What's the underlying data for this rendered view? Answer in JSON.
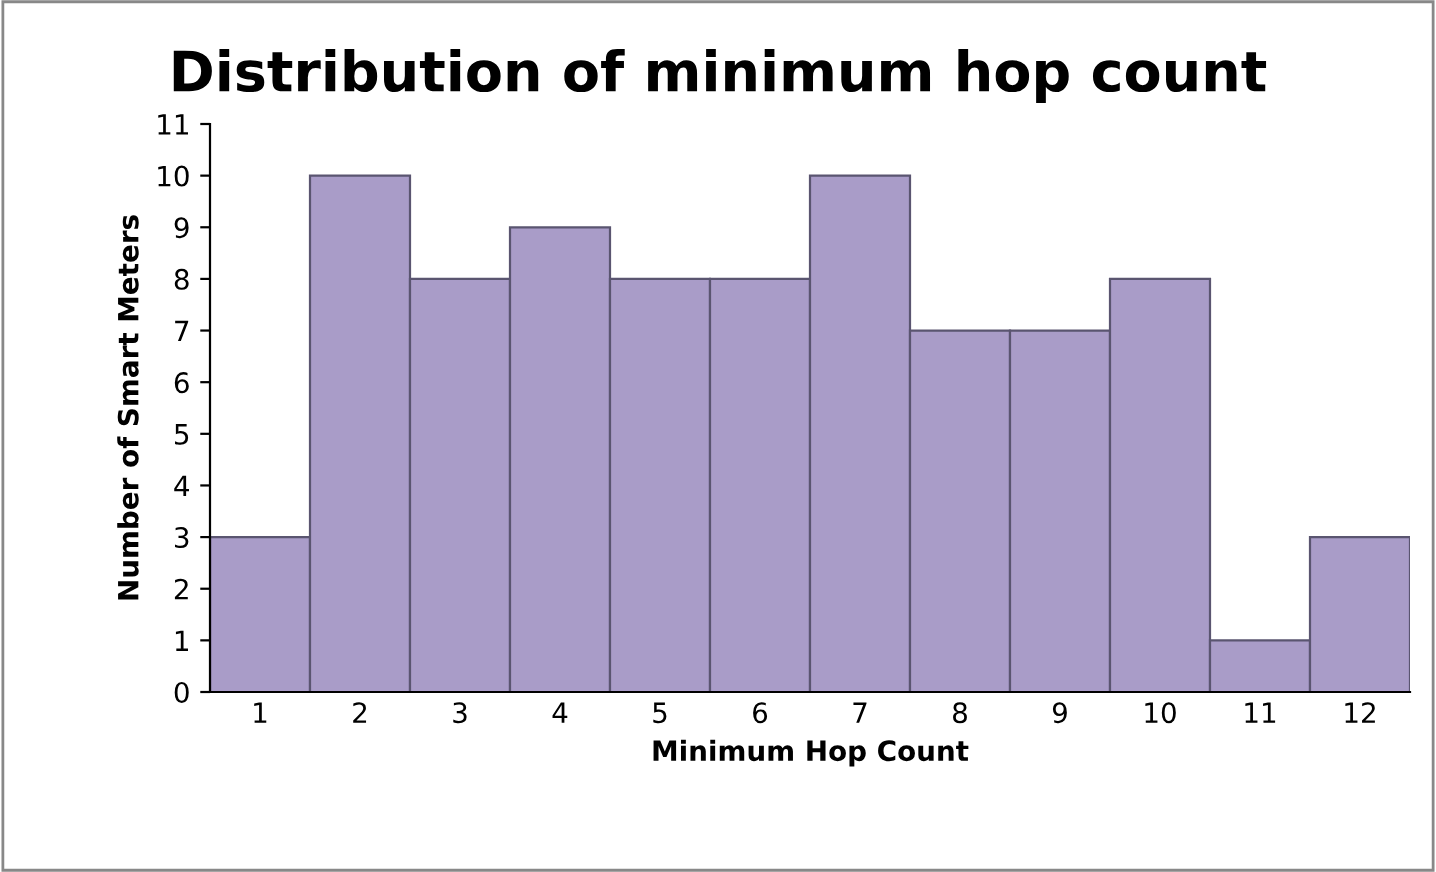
{
  "chart_data": {
    "type": "bar",
    "title": "Distribution of minimum hop count",
    "xlabel": "Minimum Hop Count",
    "ylabel": "Number of Smart Meters",
    "categories": [
      "1",
      "2",
      "3",
      "4",
      "5",
      "6",
      "7",
      "8",
      "9",
      "10",
      "11",
      "12"
    ],
    "values": [
      3,
      10,
      8,
      9,
      8,
      8,
      10,
      7,
      7,
      8,
      1,
      3
    ],
    "color": "#a99cc8",
    "ylim": [
      0,
      11
    ],
    "yticks": [
      0,
      1,
      2,
      3,
      4,
      5,
      6,
      7,
      8,
      9,
      10,
      11
    ],
    "grid": false,
    "legend": false
  }
}
